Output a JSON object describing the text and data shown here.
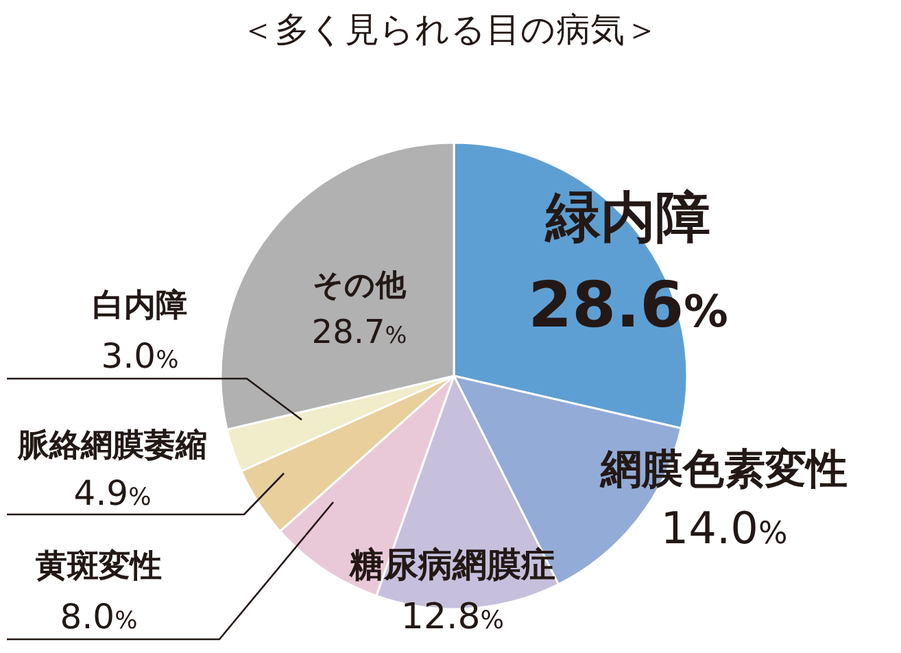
{
  "chart_data": {
    "type": "pie",
    "title": "＜多く見られる目の病気＞",
    "categories": [
      "緑内障",
      "網膜色素変性",
      "糖尿病網膜症",
      "黄斑変性",
      "脈絡網膜萎縮",
      "白内障",
      "その他"
    ],
    "values": [
      28.6,
      14.0,
      12.8,
      8.0,
      4.9,
      3.0,
      28.7
    ],
    "value_labels": [
      "28.6%",
      "14.0%",
      "12.8%",
      "8.0%",
      "4.9%",
      "3.0%",
      "28.7%"
    ],
    "colors": [
      "#5e9fd3",
      "#93abd7",
      "#c6c0dd",
      "#e9c9d8",
      "#e8cf9c",
      "#f1ecc9",
      "#b1b1b1"
    ]
  }
}
